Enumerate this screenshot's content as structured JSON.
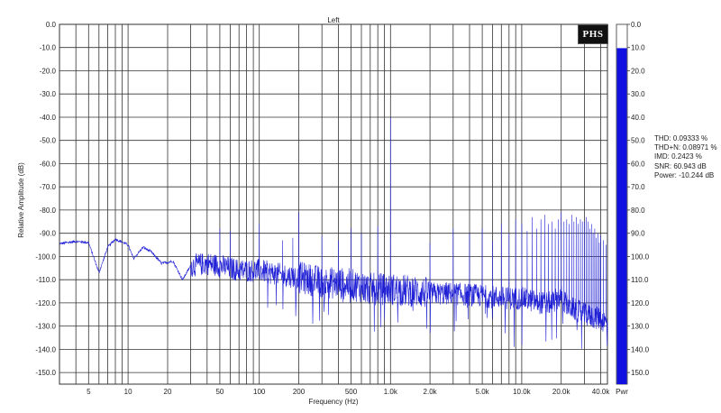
{
  "chart_data": {
    "type": "line",
    "title": "Left",
    "xlabel": "Frequency (Hz)",
    "ylabel": "Relative Amplitude (dB)",
    "x_scale": "log",
    "xlim": [
      3,
      45000
    ],
    "ylim": [
      -155,
      0
    ],
    "grid": true,
    "line_color": "#1f1fd6",
    "x_ticks": [
      {
        "v": 5,
        "label": "5"
      },
      {
        "v": 10,
        "label": "10"
      },
      {
        "v": 20,
        "label": "20"
      },
      {
        "v": 50,
        "label": "50"
      },
      {
        "v": 100,
        "label": "100"
      },
      {
        "v": 200,
        "label": "200"
      },
      {
        "v": 500,
        "label": "500"
      },
      {
        "v": 1000,
        "label": "1.0k"
      },
      {
        "v": 2000,
        "label": "2.0k"
      },
      {
        "v": 5000,
        "label": "5.0k"
      },
      {
        "v": 10000,
        "label": "10.0k"
      },
      {
        "v": 20000,
        "label": "20.0k"
      },
      {
        "v": 40000,
        "label": "40.0k"
      }
    ],
    "y_ticks": [
      {
        "v": 0,
        "label": "0.0"
      },
      {
        "v": -10,
        "label": "-10.0"
      },
      {
        "v": -20,
        "label": "-20.0"
      },
      {
        "v": -30,
        "label": "-30.0"
      },
      {
        "v": -40,
        "label": "-40.0"
      },
      {
        "v": -50,
        "label": "-50.0"
      },
      {
        "v": -60,
        "label": "-60.0"
      },
      {
        "v": -70,
        "label": "-70.0"
      },
      {
        "v": -80,
        "label": "-80.0"
      },
      {
        "v": -90,
        "label": "-90.0"
      },
      {
        "v": -100,
        "label": "-100.0"
      },
      {
        "v": -110,
        "label": "-110.0"
      },
      {
        "v": -120,
        "label": "-120.0"
      },
      {
        "v": -130,
        "label": "-130.0"
      },
      {
        "v": -140,
        "label": "-140.0"
      },
      {
        "v": -150,
        "label": "-150.0"
      }
    ],
    "series": [
      {
        "floor": [
          [
            3,
            -94.5
          ],
          [
            4,
            -93.5
          ],
          [
            5,
            -94
          ],
          [
            6,
            -107
          ],
          [
            7,
            -96
          ],
          [
            8,
            -92.5
          ],
          [
            10,
            -95
          ],
          [
            11,
            -101
          ],
          [
            13,
            -96
          ],
          [
            15,
            -98
          ],
          [
            18,
            -103
          ],
          [
            22,
            -102
          ],
          [
            26,
            -110
          ],
          [
            30,
            -104
          ],
          [
            40,
            -103
          ],
          [
            50,
            -104
          ],
          [
            70,
            -106
          ],
          [
            100,
            -106
          ],
          [
            150,
            -108
          ],
          [
            200,
            -109
          ],
          [
            300,
            -111
          ],
          [
            500,
            -112
          ],
          [
            700,
            -114
          ],
          [
            1000,
            -114
          ],
          [
            1500,
            -115
          ],
          [
            2000,
            -116
          ],
          [
            3000,
            -116
          ],
          [
            5000,
            -117
          ],
          [
            8000,
            -118
          ],
          [
            10000,
            -118
          ],
          [
            14000,
            -120
          ],
          [
            17000,
            -120
          ],
          [
            20000,
            -117
          ],
          [
            22000,
            -121
          ],
          [
            30000,
            -125
          ],
          [
            40000,
            -127
          ],
          [
            45000,
            -129
          ]
        ],
        "spikes": [
          [
            50,
            -88
          ],
          [
            60,
            -89
          ],
          [
            100,
            -86
          ],
          [
            150,
            -93
          ],
          [
            180,
            -92
          ],
          [
            200,
            -81
          ],
          [
            300,
            -91
          ],
          [
            400,
            -93
          ],
          [
            500,
            -88
          ],
          [
            600,
            -90
          ],
          [
            800,
            -87
          ],
          [
            1000,
            -40
          ],
          [
            2000,
            -94
          ],
          [
            3000,
            -88
          ],
          [
            4000,
            -90
          ],
          [
            5000,
            -88
          ],
          [
            6000,
            -93
          ],
          [
            7000,
            -86
          ],
          [
            8000,
            -90
          ],
          [
            9000,
            -84
          ],
          [
            10000,
            -86
          ],
          [
            11000,
            -89
          ],
          [
            12000,
            -83
          ],
          [
            13000,
            -88
          ],
          [
            14000,
            -84
          ],
          [
            15000,
            -82
          ],
          [
            16000,
            -86
          ],
          [
            17000,
            -85
          ],
          [
            18000,
            -88
          ],
          [
            19000,
            -84
          ],
          [
            20000,
            -81
          ],
          [
            21000,
            -85
          ],
          [
            22000,
            -84
          ],
          [
            23000,
            -86
          ],
          [
            24000,
            -82
          ],
          [
            25000,
            -85
          ],
          [
            26000,
            -83
          ],
          [
            27000,
            -86
          ],
          [
            28000,
            -84
          ],
          [
            29000,
            -85
          ],
          [
            30000,
            -85
          ],
          [
            31000,
            -83
          ],
          [
            32000,
            -85
          ],
          [
            33000,
            -88
          ],
          [
            34000,
            -86
          ],
          [
            35000,
            -90
          ],
          [
            36000,
            -88
          ],
          [
            37000,
            -92
          ],
          [
            38000,
            -90
          ],
          [
            39000,
            -94
          ],
          [
            40000,
            -91
          ],
          [
            42000,
            -93
          ],
          [
            44000,
            -95
          ]
        ]
      }
    ],
    "power_bar": {
      "label": "Pwr",
      "value_db": -10.244,
      "ticks": [
        "0.0",
        "10.0",
        "20.0",
        "30.0",
        "40.0",
        "50.0",
        "60.0",
        "70.0",
        "80.0",
        "90.0",
        "100.0",
        "110.0",
        "120.0",
        "130.0",
        "140.0",
        "150.0"
      ],
      "color": "#1010e0"
    }
  },
  "stats": {
    "thd": "THD: 0.09333 %",
    "thdn": "THD+N: 0.08971 %",
    "imd": "IMD: 0.2423 %",
    "snr": "SNR: 60.943 dB",
    "power": "Power: -10.244 dB"
  },
  "logo": "PHS"
}
